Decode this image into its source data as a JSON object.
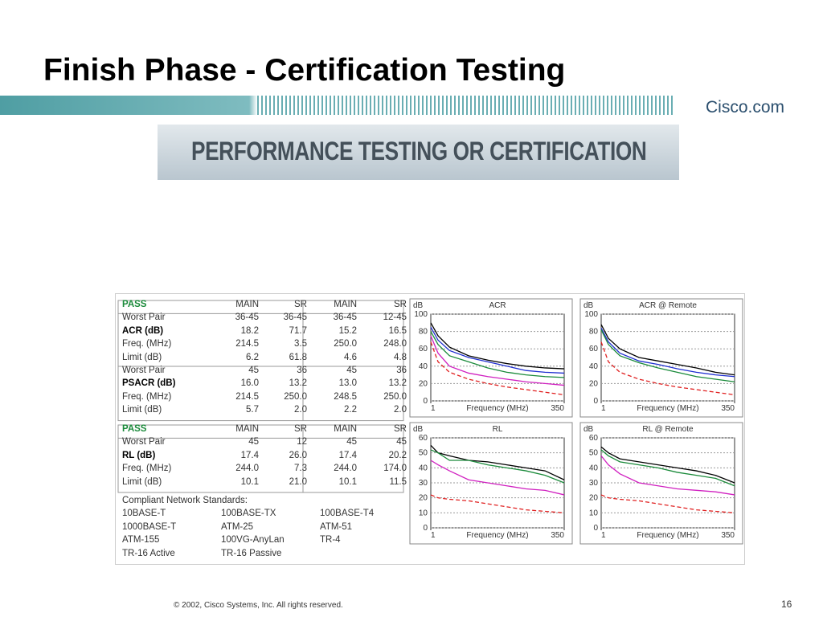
{
  "header": {
    "title": "Finish Phase - Certification Testing",
    "logo": "Cisco.com"
  },
  "banner": "PERFORMANCE TESTING OR CERTIFICATION",
  "tables": [
    {
      "columns": [
        "PASS",
        "MAIN",
        "SR",
        "MAIN",
        "SR"
      ],
      "rows": [
        [
          "Worst Pair",
          "36-45",
          "36-45",
          "36-45",
          "12-45"
        ],
        [
          "ACR (dB)",
          "18.2",
          "71.7",
          "15.2",
          "16.5"
        ],
        [
          "Freq. (MHz)",
          "214.5",
          "3.5",
          "250.0",
          "248.0"
        ],
        [
          "Limit (dB)",
          "6.2",
          "61.8",
          "4.6",
          "4.8"
        ],
        [
          "Worst Pair",
          "45",
          "36",
          "45",
          "36"
        ],
        [
          "PSACR (dB)",
          "16.0",
          "13.2",
          "13.0",
          "13.2"
        ],
        [
          "Freq. (MHz)",
          "214.5",
          "250.0",
          "248.5",
          "250.0"
        ],
        [
          "Limit (dB)",
          "5.7",
          "2.0",
          "2.2",
          "2.0"
        ]
      ]
    },
    {
      "columns": [
        "PASS",
        "MAIN",
        "SR",
        "MAIN",
        "SR"
      ],
      "rows": [
        [
          "Worst Pair",
          "45",
          "12",
          "45",
          "45"
        ],
        [
          "RL (dB)",
          "17.4",
          "26.0",
          "17.4",
          "20.2"
        ],
        [
          "Freq. (MHz)",
          "244.0",
          "7.3",
          "244.0",
          "174.0"
        ],
        [
          "Limit (dB)",
          "10.1",
          "21.0",
          "10.1",
          "11.5"
        ]
      ]
    }
  ],
  "standards": {
    "title": "Compliant Network Standards:",
    "items": [
      [
        "10BASE-T",
        "100BASE-TX",
        "100BASE-T4"
      ],
      [
        "1000BASE-T",
        "ATM-25",
        "ATM-51"
      ],
      [
        "ATM-155",
        "100VG-AnyLan",
        "TR-4"
      ],
      [
        "TR-16 Active",
        "TR-16 Passive"
      ]
    ]
  },
  "charts": [
    {
      "type": "line",
      "title": "ACR",
      "y_label": "dB",
      "x_label": "Frequency (MHz)",
      "xlim": [
        1,
        350
      ],
      "xticks": [
        1,
        350
      ],
      "ylim": [
        0,
        100
      ],
      "yticks": [
        0,
        20,
        40,
        60,
        80,
        100
      ],
      "x": [
        1,
        20,
        50,
        100,
        150,
        200,
        250,
        300,
        350
      ],
      "series": [
        {
          "color": "#000000",
          "values": [
            90,
            75,
            62,
            52,
            47,
            43,
            40,
            38,
            37
          ]
        },
        {
          "color": "#1f2fd0",
          "values": [
            85,
            70,
            58,
            50,
            45,
            40,
            35,
            33,
            32
          ]
        },
        {
          "color": "#1a8a3a",
          "values": [
            80,
            65,
            52,
            45,
            38,
            33,
            30,
            28,
            27
          ]
        },
        {
          "color": "#d020c0",
          "values": [
            75,
            55,
            40,
            32,
            28,
            25,
            22,
            20,
            18
          ]
        },
        {
          "color": "#e02020",
          "dashed": true,
          "values": [
            68,
            45,
            33,
            25,
            20,
            16,
            13,
            10,
            7
          ]
        }
      ]
    },
    {
      "type": "line",
      "title": "ACR @ Remote",
      "y_label": "dB",
      "x_label": "Frequency (MHz)",
      "xlim": [
        1,
        350
      ],
      "xticks": [
        1,
        350
      ],
      "ylim": [
        0,
        100
      ],
      "yticks": [
        0,
        20,
        40,
        60,
        80,
        100
      ],
      "x": [
        1,
        20,
        50,
        100,
        150,
        200,
        250,
        300,
        350
      ],
      "series": [
        {
          "color": "#000000",
          "values": [
            88,
            72,
            60,
            50,
            46,
            42,
            38,
            33,
            30
          ]
        },
        {
          "color": "#1f2fd0",
          "values": [
            84,
            68,
            55,
            46,
            42,
            37,
            33,
            30,
            28
          ]
        },
        {
          "color": "#1a8a3a",
          "values": [
            82,
            65,
            52,
            44,
            38,
            33,
            28,
            25,
            22
          ]
        },
        {
          "color": "#e02020",
          "dashed": true,
          "values": [
            68,
            45,
            33,
            25,
            20,
            16,
            13,
            10,
            7
          ]
        }
      ]
    },
    {
      "type": "line",
      "title": "RL",
      "y_label": "dB",
      "x_label": "Frequency (MHz)",
      "xlim": [
        1,
        350
      ],
      "xticks": [
        1,
        350
      ],
      "ylim": [
        0,
        60
      ],
      "yticks": [
        0,
        10,
        20,
        30,
        40,
        50,
        60
      ],
      "x": [
        1,
        20,
        50,
        100,
        150,
        200,
        250,
        300,
        350
      ],
      "series": [
        {
          "color": "#000000",
          "values": [
            55,
            50,
            48,
            45,
            44,
            42,
            40,
            38,
            32
          ]
        },
        {
          "color": "#1a8a3a",
          "values": [
            52,
            50,
            45,
            45,
            42,
            40,
            38,
            35,
            30
          ]
        },
        {
          "color": "#d020c0",
          "values": [
            45,
            42,
            38,
            32,
            30,
            28,
            26,
            25,
            22
          ]
        },
        {
          "color": "#e02020",
          "dashed": true,
          "values": [
            22,
            20,
            19,
            18,
            16,
            14,
            12,
            11,
            10
          ]
        }
      ]
    },
    {
      "type": "line",
      "title": "RL @ Remote",
      "y_label": "dB",
      "x_label": "Frequency (MHz)",
      "xlim": [
        1,
        350
      ],
      "xticks": [
        1,
        350
      ],
      "ylim": [
        0,
        60
      ],
      "yticks": [
        0,
        10,
        20,
        30,
        40,
        50,
        60
      ],
      "x": [
        1,
        20,
        50,
        100,
        150,
        200,
        250,
        300,
        350
      ],
      "series": [
        {
          "color": "#000000",
          "values": [
            54,
            50,
            46,
            44,
            42,
            40,
            38,
            35,
            30
          ]
        },
        {
          "color": "#1a8a3a",
          "values": [
            52,
            48,
            44,
            42,
            40,
            37,
            35,
            33,
            28
          ]
        },
        {
          "color": "#d020c0",
          "values": [
            48,
            42,
            36,
            30,
            28,
            26,
            25,
            24,
            22
          ]
        },
        {
          "color": "#e02020",
          "dashed": true,
          "values": [
            22,
            20,
            19,
            18,
            16,
            14,
            12,
            11,
            10
          ]
        }
      ]
    }
  ],
  "footer": {
    "copyright": "© 2002, Cisco Systems, Inc. All rights reserved.",
    "page": "16"
  }
}
